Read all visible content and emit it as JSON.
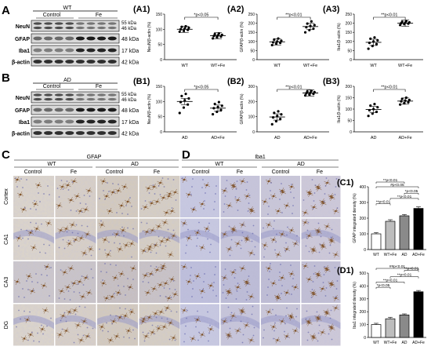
{
  "panels": {
    "A": "A",
    "B": "B",
    "C": "C",
    "D": "D",
    "A1": "(A1)",
    "A2": "(A2)",
    "A3": "(A3)",
    "B1": "(B1)",
    "B2": "(B2)",
    "B3": "(B3)",
    "C1": "(C1)",
    "D1": "(D1)"
  },
  "blotA": {
    "group": "WT",
    "control": "Control",
    "fe": "Fe",
    "rows": [
      {
        "label": "NeuN",
        "kda": "55 kDa",
        "kda2": "46 kDa"
      },
      {
        "label": "GFAP",
        "kda": "48 kDa",
        "kda2": ""
      },
      {
        "label": "Iba1",
        "kda": "17 kDa",
        "kda2": ""
      },
      {
        "label": "β-actin",
        "kda": "42 kDa",
        "kda2": ""
      }
    ]
  },
  "blotB": {
    "group": "AD",
    "control": "Control",
    "fe": "Fe",
    "rows": [
      {
        "label": "NeuN",
        "kda": "55 kDa",
        "kda2": "46 kDa"
      },
      {
        "label": "GFAP",
        "kda": "48 kDa",
        "kda2": ""
      },
      {
        "label": "Iba1",
        "kda": "17 kDa",
        "kda2": ""
      },
      {
        "label": "β-actin",
        "kda": "42 kDa",
        "kda2": ""
      }
    ]
  },
  "stain": {
    "C_title": "GFAP",
    "D_title": "Iba1",
    "wt": "WT",
    "ad": "AD",
    "control": "Control",
    "fe": "Fe",
    "rows": [
      "Cortex",
      "CA1",
      "CA3",
      "DG"
    ]
  },
  "chart_data": [
    {
      "id": "A1",
      "type": "scatter",
      "categories": [
        "WT",
        "WT+Fe"
      ],
      "ylabel": "NeuN/β-actin (%)",
      "ylim": [
        0,
        150
      ],
      "yticks": [
        0,
        50,
        100,
        150
      ],
      "series": [
        {
          "values": [
            [
              92,
              95,
              98,
              100,
              103,
              105,
              108,
              110
            ],
            [
              70,
              74,
              76,
              78,
              80,
              82,
              84,
              86
            ]
          ]
        }
      ],
      "means": [
        100,
        79
      ],
      "sig": "*p<0.05"
    },
    {
      "id": "A2",
      "type": "scatter",
      "categories": [
        "WT",
        "WT+Fe"
      ],
      "ylabel": "GFAP/β-actin (%)",
      "ylim": [
        0,
        250
      ],
      "yticks": [
        0,
        50,
        100,
        150,
        200,
        250
      ],
      "series": [
        {
          "values": [
            [
              80,
              88,
              92,
              95,
              100,
              104,
              110,
              116
            ],
            [
              150,
              162,
              170,
              178,
              185,
              190,
              198,
              210
            ]
          ]
        }
      ],
      "means": [
        98,
        182
      ],
      "sig": "**p<0.01"
    },
    {
      "id": "A3",
      "type": "scatter",
      "categories": [
        "WT",
        "WT+Fe"
      ],
      "ylabel": "Iba1/β-actin (%)",
      "ylim": [
        0,
        250
      ],
      "yticks": [
        0,
        50,
        100,
        150,
        200,
        250
      ],
      "series": [
        {
          "values": [
            [
              60,
              75,
              85,
              92,
              100,
              106,
              115,
              122
            ],
            [
              190,
              195,
              198,
              200,
              203,
              205,
              208,
              212
            ]
          ]
        }
      ],
      "means": [
        95,
        200
      ],
      "sig": "**p<0.01"
    },
    {
      "id": "B1",
      "type": "scatter",
      "categories": [
        "AD",
        "AD+Fe"
      ],
      "ylabel": "NeuN/β-actin (%)",
      "ylim": [
        0,
        150
      ],
      "yticks": [
        0,
        50,
        100,
        150
      ],
      "series": [
        {
          "values": [
            [
              62,
              80,
              90,
              98,
              104,
              110,
              118,
              125
            ],
            [
              58,
              66,
              72,
              78,
              82,
              86,
              92,
              98
            ]
          ]
        }
      ],
      "means": [
        100,
        78
      ],
      "sig": "*p<0.05"
    },
    {
      "id": "B2",
      "type": "scatter",
      "categories": [
        "AD",
        "AD+Fe"
      ],
      "ylabel": "GFAP/β-actin (%)",
      "ylim": [
        0,
        300
      ],
      "yticks": [
        0,
        100,
        200,
        300
      ],
      "series": [
        {
          "values": [
            [
              50,
              70,
              85,
              95,
              105,
              115,
              125,
              135
            ],
            [
              240,
              246,
              250,
              254,
              258,
              262,
              266,
              270
            ]
          ]
        }
      ],
      "means": [
        98,
        256
      ],
      "sig": "**p<0.01"
    },
    {
      "id": "B3",
      "type": "scatter",
      "categories": [
        "AD",
        "AD+Fe"
      ],
      "ylabel": "Iba1/β-actin (%)",
      "ylim": [
        0,
        200
      ],
      "yticks": [
        0,
        50,
        100,
        150,
        200
      ],
      "series": [
        {
          "values": [
            [
              70,
              80,
              88,
              95,
              100,
              108,
              115,
              122
            ],
            [
              120,
              126,
              130,
              134,
              137,
              140,
              145,
              150
            ]
          ]
        }
      ],
      "means": [
        98,
        135
      ],
      "sig": "**p<0.01"
    },
    {
      "id": "C1",
      "type": "bar",
      "categories": [
        "WT",
        "WT+Fe",
        "AD",
        "AD+Fe"
      ],
      "ylabel": "GFAP integrated density (%)",
      "ylim": [
        0,
        400
      ],
      "yticks": [
        0,
        100,
        200,
        300,
        400
      ],
      "values": [
        100,
        180,
        215,
        262
      ],
      "errors": [
        8,
        10,
        8,
        10
      ],
      "sigs": [
        [
          "WT",
          "WT+Fe",
          "**p<0.01"
        ],
        [
          "WT+Fe",
          "AD+Fe",
          "**p<0.01"
        ],
        [
          "AD",
          "AD+Fe",
          "*p<0.05"
        ],
        [
          "WT",
          "AD+Fe",
          "#p<0.05"
        ],
        [
          "WT",
          "AD",
          "**p<0.01"
        ]
      ]
    },
    {
      "id": "D1",
      "type": "bar",
      "categories": [
        "WT",
        "WT+Fe",
        "AD",
        "AD+Fe"
      ],
      "ylabel": "Iba1 integrated density (%)",
      "ylim": [
        0,
        500
      ],
      "yticks": [
        0,
        100,
        200,
        300,
        400,
        500
      ],
      "values": [
        100,
        145,
        175,
        355
      ],
      "errors": [
        10,
        12,
        8,
        10
      ],
      "sigs": [
        [
          "WT",
          "WT+Fe",
          "*p<0.05"
        ],
        [
          "WT",
          "AD",
          "**p<0.01"
        ],
        [
          "WT+Fe",
          "AD+Fe",
          "**p<0.01"
        ],
        [
          "AD",
          "AD+Fe",
          "**p<0.01"
        ],
        [
          "WT",
          "AD+Fe",
          "##p<0.01"
        ]
      ]
    }
  ]
}
